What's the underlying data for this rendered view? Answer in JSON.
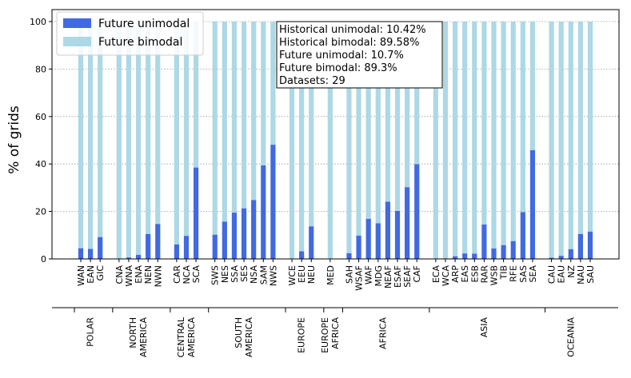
{
  "chart_data": {
    "type": "bar",
    "stacked": true,
    "ylabel": "% of grids",
    "ylim": [
      0,
      100
    ],
    "yticks": [
      0,
      20,
      40,
      60,
      80,
      100
    ],
    "grid": "horizontal dotted",
    "colors": {
      "unimodal": "#4169e1",
      "bimodal": "#add8e6"
    },
    "legend": {
      "placement": "top-left",
      "items": [
        "Future unimodal",
        "Future bimodal"
      ]
    },
    "info_box": [
      "Historical unimodal: 10.42%",
      "Historical bimodal: 89.58%",
      "Future unimodal: 10.7%",
      "Future bimodal: 89.3%",
      "Datasets: 29"
    ],
    "groups": [
      {
        "name": [
          "POLAR"
        ],
        "categories": [
          "WAN",
          "EAN",
          "GIC"
        ],
        "unimodal": [
          4.5,
          4.2,
          9.2
        ]
      },
      {
        "name": [
          "NORTH",
          "AMERICA"
        ],
        "categories": [
          "CNA",
          "WNA",
          "ENA",
          "NEN",
          "NWN"
        ],
        "unimodal": [
          0.2,
          0.6,
          1.7,
          10.5,
          14.7
        ]
      },
      {
        "name": [
          "CENTRAL",
          "AMERICA"
        ],
        "categories": [
          "CAR",
          "NCA",
          "SCA"
        ],
        "unimodal": [
          6.1,
          9.7,
          38.5
        ]
      },
      {
        "name": [
          "SOUTH",
          "AMERICA"
        ],
        "categories": [
          "SWS",
          "NES",
          "SSA",
          "SES",
          "NSA",
          "SAM",
          "NWS"
        ],
        "unimodal": [
          10.2,
          15.7,
          19.5,
          21.3,
          24.8,
          39.4,
          48.1
        ]
      },
      {
        "name": [
          "EUROPE"
        ],
        "categories": [
          "WCE",
          "EEU",
          "NEU"
        ],
        "unimodal": [
          0,
          3.2,
          13.7
        ]
      },
      {
        "name": [
          "EUROPE",
          "AFRICA"
        ],
        "categories": [
          "MED"
        ],
        "unimodal": [
          0.1
        ]
      },
      {
        "name": [
          "AFRICA"
        ],
        "categories": [
          "SAH",
          "WSAF",
          "WAF",
          "MDG",
          "NEAF",
          "ESAF",
          "SEAF",
          "CAF"
        ],
        "unimodal": [
          2.4,
          9.8,
          16.9,
          15.0,
          24.1,
          20.2,
          30.2,
          39.9
        ]
      },
      {
        "name": [
          "ASIA"
        ],
        "categories": [
          "ECA",
          "WCA",
          "ARP",
          "EAS",
          "ESB",
          "RAR",
          "WSB",
          "TIB",
          "RFE",
          "SAS",
          "SEA"
        ],
        "unimodal": [
          0.1,
          0.2,
          1.1,
          2.3,
          2.2,
          14.5,
          4.4,
          5.8,
          7.5,
          19.7,
          45.8
        ]
      },
      {
        "name": [
          "OCEANIA"
        ],
        "categories": [
          "CAU",
          "EAU",
          "NZ",
          "NAU",
          "SAU"
        ],
        "unimodal": [
          0.5,
          1.3,
          4.1,
          10.5,
          11.5
        ]
      }
    ]
  }
}
